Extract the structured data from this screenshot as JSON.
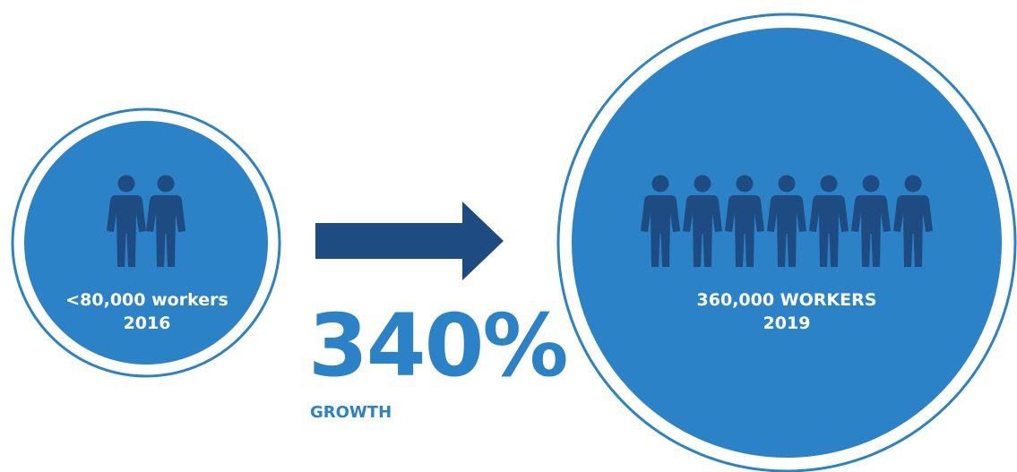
{
  "colors": {
    "circle_fill": "#2b82c6",
    "circle_ring": "#2b82c6",
    "person": "#1d4b82",
    "arrow": "#1d4b82",
    "growth_text": "#2b82c6",
    "label_text": "#ffffff"
  },
  "before": {
    "workers_label": "<80,000 workers",
    "year": "2016",
    "people_count": 2
  },
  "after": {
    "workers_label": "360,000 WORKERS",
    "year": "2019",
    "people_count": 7
  },
  "growth": {
    "percent": "340%",
    "label": "GROWTH"
  },
  "icons": {
    "person": "person-icon",
    "arrow": "arrow-right-icon"
  }
}
